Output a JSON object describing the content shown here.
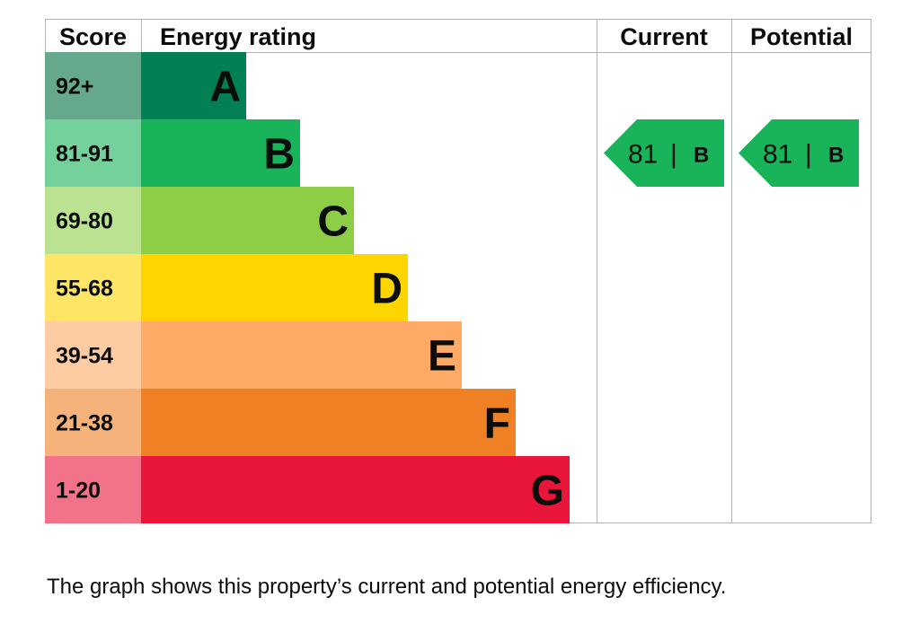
{
  "chart_data": {
    "type": "table",
    "columns": [
      "Score",
      "Energy rating",
      "Current",
      "Potential"
    ],
    "bands": [
      {
        "score": "92+",
        "letter": "A",
        "color": "#008054",
        "score_color": "#66a88b"
      },
      {
        "score": "81-91",
        "letter": "B",
        "color": "#19b459",
        "score_color": "#75d19b"
      },
      {
        "score": "69-80",
        "letter": "C",
        "color": "#8dce46",
        "score_color": "#bbe290"
      },
      {
        "score": "55-68",
        "letter": "D",
        "color": "#ffd500",
        "score_color": "#ffe566"
      },
      {
        "score": "39-54",
        "letter": "E",
        "color": "#fcaa65",
        "score_color": "#fdcca3"
      },
      {
        "score": "21-38",
        "letter": "F",
        "color": "#ef8023",
        "score_color": "#f5b37b"
      },
      {
        "score": "1-20",
        "letter": "G",
        "color": "#e9153b",
        "score_color": "#f27389"
      }
    ],
    "current": {
      "value": 81,
      "letter": "B",
      "band_index": 1,
      "color": "#19b459"
    },
    "potential": {
      "value": 81,
      "letter": "B",
      "band_index": 1,
      "color": "#19b459"
    }
  },
  "caption": "The graph shows this property’s current and potential energy efficiency."
}
